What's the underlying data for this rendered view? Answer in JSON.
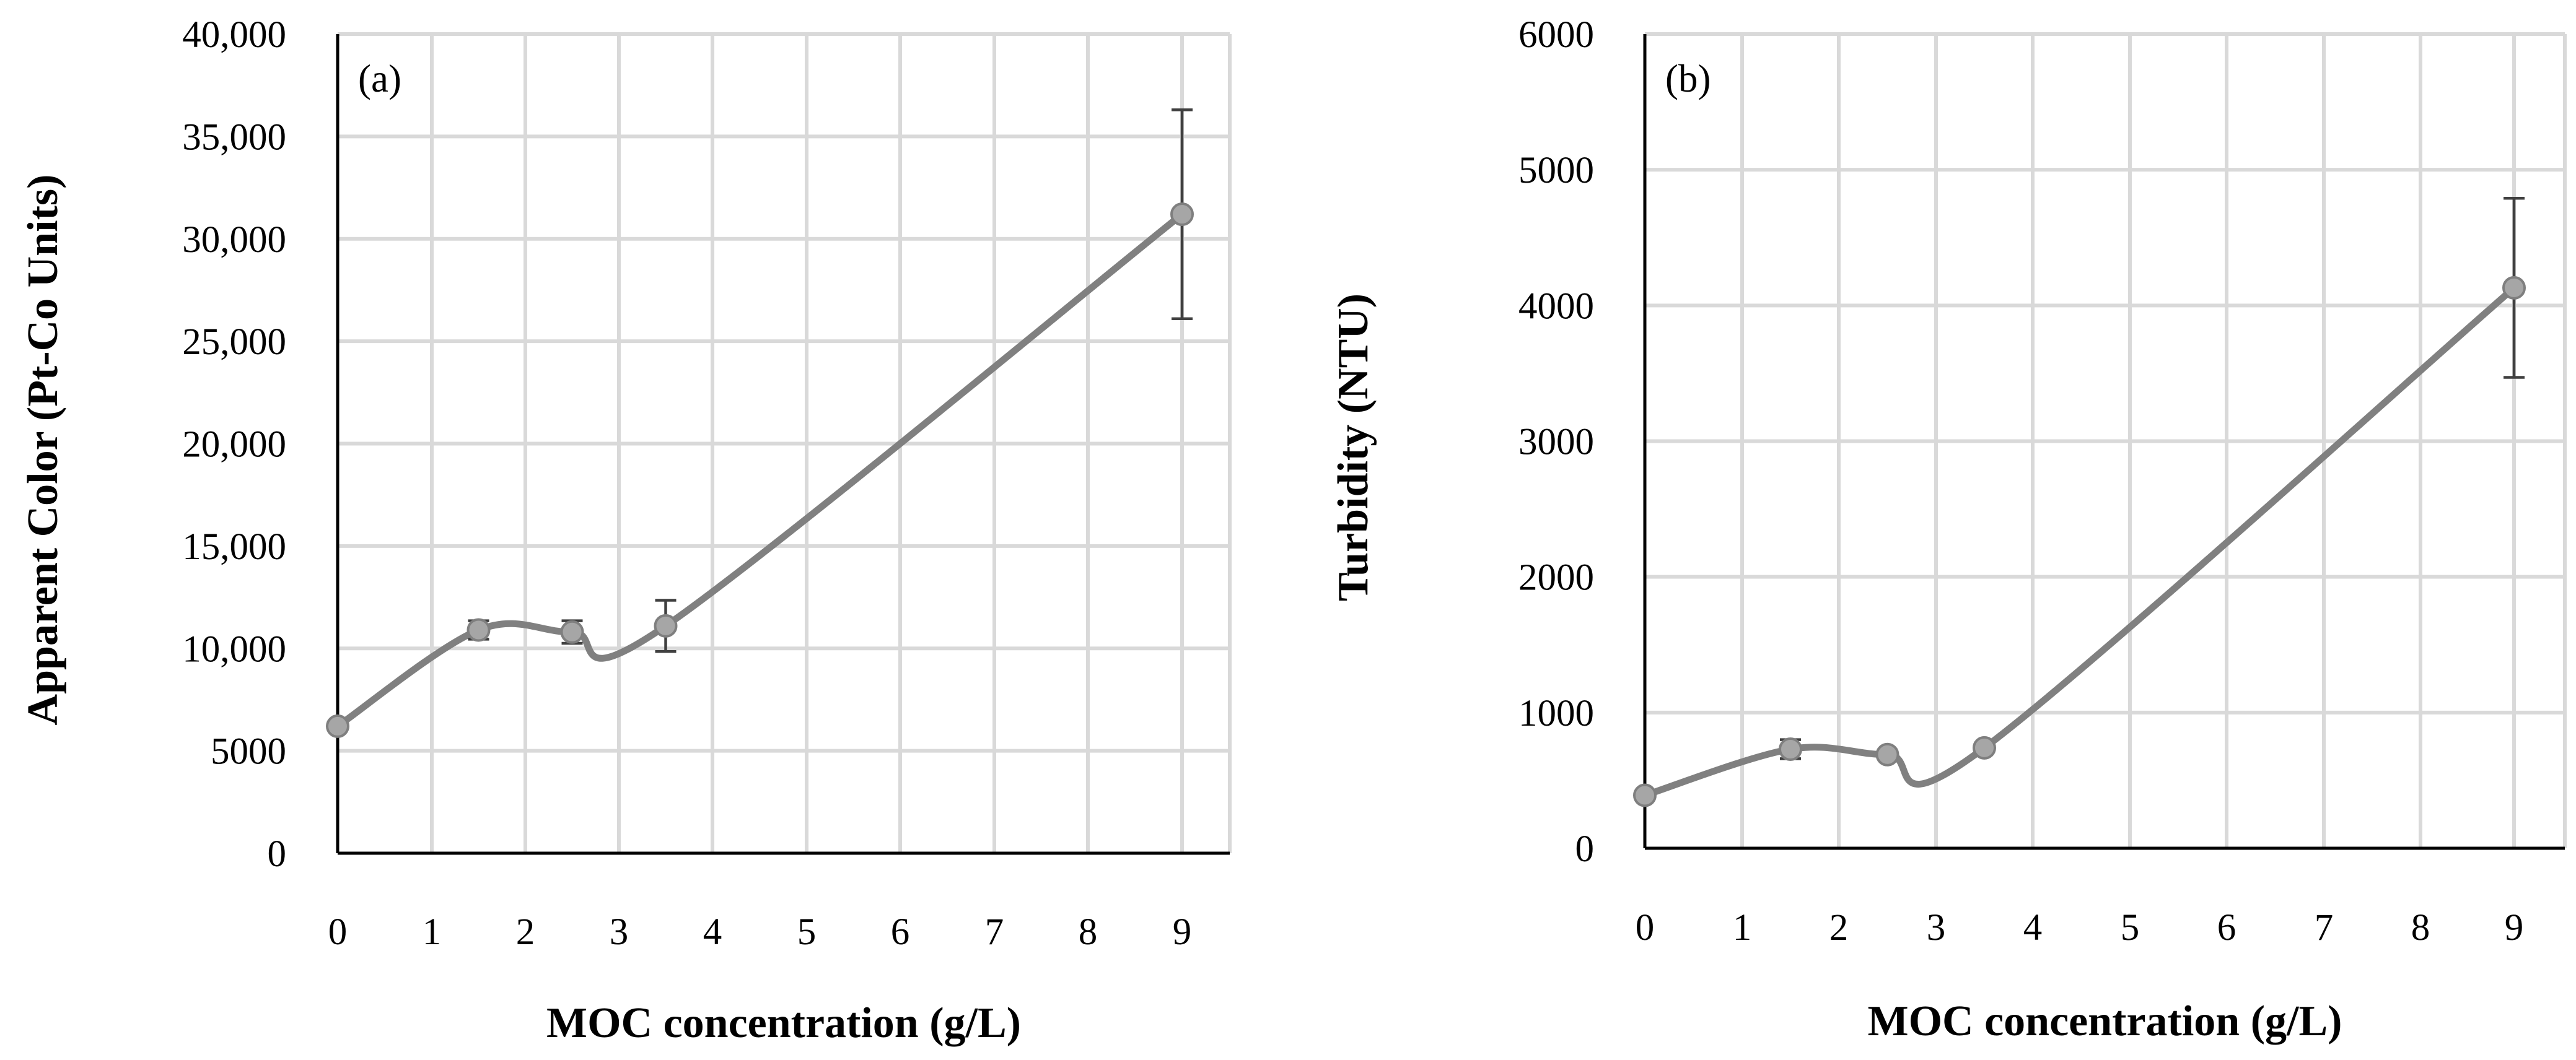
{
  "chart_data": [
    {
      "type": "line",
      "panel_label": "(a)",
      "xlabel": "MOC concentration (g/L)",
      "ylabel": "Apparent Color (Pt-Co Units)",
      "x_tick_labels": [
        "0",
        "1",
        "2",
        "3",
        "4",
        "5",
        "6",
        "7",
        "8",
        "9"
      ],
      "y_tick_labels": [
        "0",
        "5000",
        "10,000",
        "15,000",
        "20,000",
        "25,000",
        "30,000",
        "35,000",
        "40,000"
      ],
      "ylim": [
        0,
        40000
      ],
      "grid": true,
      "series": [
        {
          "name": "Apparent Color",
          "x": [
            0,
            1.5,
            2.5,
            3.5,
            9
          ],
          "y": [
            6200,
            10900,
            10800,
            11100,
            31200
          ],
          "error": [
            0,
            450,
            550,
            1250,
            5100
          ]
        }
      ]
    },
    {
      "type": "line",
      "panel_label": "(b)",
      "xlabel": "MOC concentration (g/L)",
      "ylabel": "Turbidity (NTU)",
      "x_tick_labels": [
        "0",
        "1",
        "2",
        "3",
        "4",
        "5",
        "6",
        "7",
        "8",
        "9"
      ],
      "y_tick_labels": [
        "0",
        "1000",
        "2000",
        "3000",
        "4000",
        "5000",
        "6000"
      ],
      "ylim": [
        0,
        6000
      ],
      "grid": true,
      "series": [
        {
          "name": "Turbidity",
          "x": [
            0,
            1.5,
            2.5,
            3.5,
            9
          ],
          "y": [
            390,
            730,
            690,
            740,
            4130
          ],
          "error": [
            0,
            70,
            0,
            0,
            660
          ]
        }
      ]
    }
  ]
}
